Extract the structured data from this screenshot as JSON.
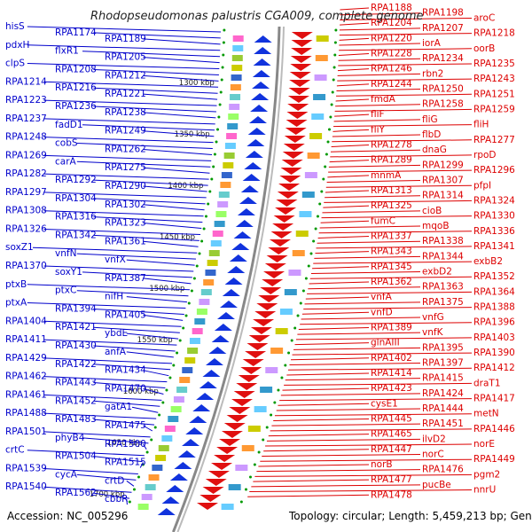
{
  "title": "Rhodopseudomonas palustris CGA009, complete genome",
  "footer": {
    "accession": "Accession: NC_005296",
    "summary": "Topology: circular; Length: 5,459,213 bp; Genes: 4,872"
  },
  "colors": {
    "left_strand": "#0000cc",
    "right_strand": "#dd0000",
    "backbone": "#888888",
    "tick": "#009900"
  },
  "ticks": [
    "1300 kbp",
    "1350 kbp",
    "1400 kbp",
    "1450 kbp",
    "1500 kbp",
    "1550 kbp",
    "1600 kbp",
    "1650 kbp",
    "1700 kbp"
  ],
  "left_labels": [
    "hisS",
    "RPA1174",
    "RPA1189",
    "pdxH",
    "flxR1",
    "RPA1205",
    "clpS",
    "RPA1208",
    "RPA1212",
    "RPA1214",
    "RPA1216",
    "RPA1221",
    "RPA1223",
    "RPA1236",
    "RPA1238",
    "RPA1237",
    "fadD1",
    "RPA1249",
    "RPA1248",
    "cobS",
    "RPA1262",
    "RPA1269",
    "carA",
    "RPA1275",
    "RPA1282",
    "RPA1292",
    "RPA1290",
    "RPA1297",
    "RPA1304",
    "RPA1302",
    "RPA1308",
    "RPA1316",
    "RPA1323",
    "RPA1326",
    "RPA1342",
    "RPA1361",
    "soxZ1",
    "vnfN",
    "vnfX",
    "RPA1370",
    "soxY1",
    "RPA1387",
    "ptxB",
    "ptxC",
    "nifH",
    "ptxA",
    "RPA1394",
    "RPA1405",
    "RPA1404",
    "RPA1421",
    "ybdE",
    "RPA1411",
    "RPA1430",
    "anfA",
    "RPA1429",
    "RPA1422",
    "RPA1434",
    "RPA1462",
    "RPA1443",
    "RPA1470",
    "RPA1461",
    "RPA1452",
    "gatA1",
    "RPA1488",
    "RPA1483",
    "RPA1475",
    "RPA1501",
    "phyB4",
    "RPA1500",
    "crtC",
    "RPA1504",
    "RPA1515",
    "RPA1539",
    "cycA",
    "crtD",
    "RPA1540",
    "RPA1562",
    "cbbR"
  ],
  "right_labels": [
    "RPA1188",
    "RPA1198",
    "aroC",
    "RPA1204",
    "RPA1207",
    "RPA1218",
    "RPA1220",
    "iorA",
    "oorB",
    "RPA1228",
    "RPA1234",
    "RPA1235",
    "RPA1246",
    "rbn2",
    "RPA1243",
    "RPA1244",
    "RPA1250",
    "RPA1251",
    "fmdA",
    "RPA1258",
    "RPA1259",
    "fliF",
    "fliG",
    "fliH",
    "fliY",
    "flbD",
    "RPA1277",
    "RPA1278",
    "dnaG",
    "rpoD",
    "RPA1289",
    "RPA1299",
    "RPA1296",
    "mnmA",
    "RPA1307",
    "pfpI",
    "RPA1313",
    "RPA1314",
    "RPA1324",
    "RPA1325",
    "cioB",
    "RPA1330",
    "fumC",
    "mqoB",
    "RPA1336",
    "RPA1337",
    "RPA1338",
    "RPA1341",
    "RPA1343",
    "RPA1344",
    "exbB2",
    "RPA1345",
    "exbD2",
    "RPA1352",
    "RPA1362",
    "RPA1363",
    "RPA1364",
    "vnfA",
    "RPA1375",
    "RPA1388",
    "vnfD",
    "vnfG",
    "RPA1396",
    "RPA1389",
    "vnfK",
    "RPA1403",
    "glnAIII",
    "RPA1395",
    "RPA1390",
    "RPA1402",
    "RPA1397",
    "RPA1412",
    "RPA1414",
    "RPA1415",
    "draT1",
    "RPA1423",
    "RPA1424",
    "RPA1417",
    "cysE1",
    "RPA1444",
    "metN",
    "RPA1445",
    "RPA1451",
    "RPA1446",
    "RPA1465",
    "ilvD2",
    "norE",
    "RPA1447",
    "norC",
    "RPA1449",
    "norB",
    "RPA1476",
    "pgm2",
    "RPA1477",
    "pucBe",
    "nnrU",
    "RPA1478"
  ]
}
